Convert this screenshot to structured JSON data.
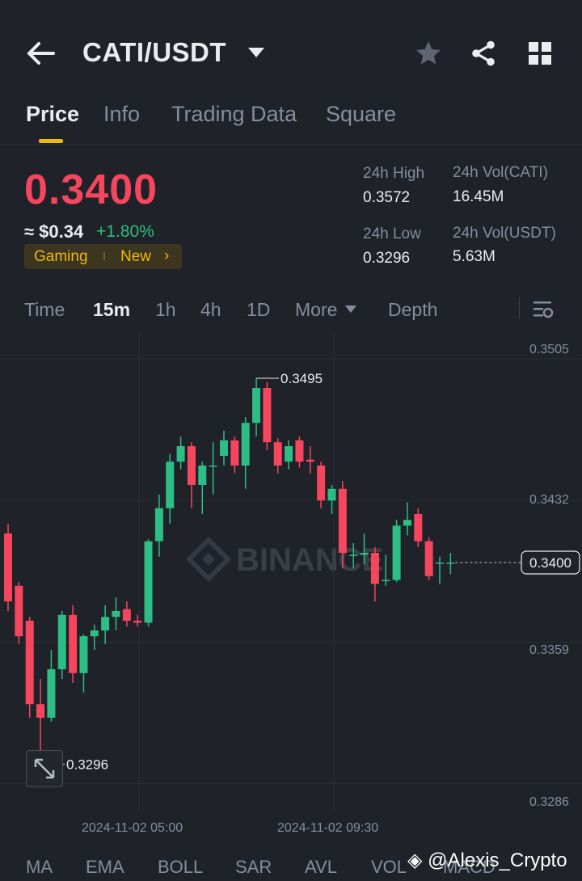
{
  "header": {
    "pair": "CATI/USDT",
    "icons": [
      "back-arrow-icon",
      "caret-down-icon",
      "star-icon",
      "share-icon",
      "grid-icon"
    ]
  },
  "tabs": [
    "Price",
    "Info",
    "Trading Data",
    "Square"
  ],
  "active_tab": "Price",
  "ticker": {
    "price": "0.3400",
    "approx": "≈ $0.34",
    "change": "+1.80%",
    "tag": "Gaming",
    "tag_new": "New",
    "tag_arrow": "›",
    "high_label": "24h High",
    "high": "0.3572",
    "low_label": "24h Low",
    "low": "0.3296",
    "vol_base_label": "24h Vol(CATI)",
    "vol_base": "16.45M",
    "vol_quote_label": "24h Vol(USDT)",
    "vol_quote": "5.63M"
  },
  "timeframes": {
    "time": "Time",
    "m15": "15m",
    "h1": "1h",
    "h4": "4h",
    "d1": "1D",
    "more": "More",
    "depth": "Depth"
  },
  "chart_axis": {
    "y1": "0.3505",
    "y2": "0.3432",
    "y3": "0.3359",
    "y4": "0.3286",
    "current": "0.3400",
    "max_label": "0.3495",
    "min_label": "0.3296",
    "t1": "2024-11-02 05:00",
    "t2": "2024-11-02 09:30",
    "watermark": "BINANCE"
  },
  "indicators": [
    "MA",
    "EMA",
    "BOLL",
    "SAR",
    "AVL",
    "VOL",
    "MACD"
  ],
  "overlay": {
    "watermark_text": "@Alexis_Crypto"
  },
  "colors": {
    "up": "#2ebd85",
    "down": "#f6465d",
    "accent": "#f0b90b",
    "background": "#1f2229"
  },
  "chart_data": {
    "type": "candlestick",
    "interval": "15m",
    "ylim": [
      0.3265,
      0.3515
    ],
    "y_ticks": [
      0.3505,
      0.3432,
      0.3359,
      0.3286
    ],
    "last_price": 0.34,
    "high_marker": 0.3495,
    "low_marker": 0.3296,
    "x_ticks": [
      "2024-11-02 05:00",
      "2024-11-02 09:30"
    ],
    "candles": [
      {
        "o": 0.3415,
        "h": 0.342,
        "c": 0.338,
        "l": 0.3375
      },
      {
        "o": 0.3388,
        "h": 0.339,
        "c": 0.3362,
        "l": 0.3358
      },
      {
        "o": 0.337,
        "h": 0.3372,
        "c": 0.3327,
        "l": 0.332
      },
      {
        "o": 0.3327,
        "h": 0.334,
        "c": 0.332,
        "l": 0.3296
      },
      {
        "o": 0.332,
        "h": 0.3355,
        "c": 0.3345,
        "l": 0.3318
      },
      {
        "o": 0.3345,
        "h": 0.3375,
        "c": 0.3373,
        "l": 0.334
      },
      {
        "o": 0.3373,
        "h": 0.3378,
        "c": 0.3343,
        "l": 0.3338
      },
      {
        "o": 0.3343,
        "h": 0.3363,
        "c": 0.3362,
        "l": 0.3333
      },
      {
        "o": 0.3362,
        "h": 0.3368,
        "c": 0.3365,
        "l": 0.3355
      },
      {
        "o": 0.3365,
        "h": 0.3378,
        "c": 0.3372,
        "l": 0.3358
      },
      {
        "o": 0.3372,
        "h": 0.3382,
        "c": 0.3375,
        "l": 0.3365
      },
      {
        "o": 0.3376,
        "h": 0.338,
        "c": 0.337,
        "l": 0.3367
      },
      {
        "o": 0.337,
        "h": 0.3373,
        "c": 0.3369,
        "l": 0.3367
      },
      {
        "o": 0.3369,
        "h": 0.3412,
        "c": 0.3411,
        "l": 0.3367
      },
      {
        "o": 0.3411,
        "h": 0.3435,
        "c": 0.3428,
        "l": 0.3403
      },
      {
        "o": 0.3428,
        "h": 0.3456,
        "c": 0.3452,
        "l": 0.342
      },
      {
        "o": 0.3452,
        "h": 0.3465,
        "c": 0.346,
        "l": 0.3448
      },
      {
        "o": 0.346,
        "h": 0.3462,
        "c": 0.344,
        "l": 0.3428
      },
      {
        "o": 0.344,
        "h": 0.3452,
        "c": 0.345,
        "l": 0.3425
      },
      {
        "o": 0.345,
        "h": 0.3462,
        "c": 0.345,
        "l": 0.3435
      },
      {
        "o": 0.3455,
        "h": 0.3468,
        "c": 0.3463,
        "l": 0.345
      },
      {
        "o": 0.3463,
        "h": 0.3465,
        "c": 0.345,
        "l": 0.3446
      },
      {
        "o": 0.345,
        "h": 0.3475,
        "c": 0.3472,
        "l": 0.3438
      },
      {
        "o": 0.3472,
        "h": 0.3495,
        "c": 0.349,
        "l": 0.3465
      },
      {
        "o": 0.349,
        "h": 0.3493,
        "c": 0.3462,
        "l": 0.3458
      },
      {
        "o": 0.3462,
        "h": 0.3464,
        "c": 0.345,
        "l": 0.3446
      },
      {
        "o": 0.3452,
        "h": 0.3463,
        "c": 0.346,
        "l": 0.3448
      },
      {
        "o": 0.3463,
        "h": 0.3465,
        "c": 0.3452,
        "l": 0.3449
      },
      {
        "o": 0.3453,
        "h": 0.346,
        "c": 0.3452,
        "l": 0.3446
      },
      {
        "o": 0.345,
        "h": 0.3452,
        "c": 0.3432,
        "l": 0.3428
      },
      {
        "o": 0.3432,
        "h": 0.344,
        "c": 0.3438,
        "l": 0.3425
      },
      {
        "o": 0.3438,
        "h": 0.3442,
        "c": 0.3405,
        "l": 0.3397
      },
      {
        "o": 0.3404,
        "h": 0.341,
        "c": 0.3404,
        "l": 0.3397
      },
      {
        "o": 0.3404,
        "h": 0.3415,
        "c": 0.3405,
        "l": 0.3399
      },
      {
        "o": 0.3405,
        "h": 0.3408,
        "c": 0.3389,
        "l": 0.338
      },
      {
        "o": 0.3391,
        "h": 0.3404,
        "c": 0.3391,
        "l": 0.3388
      },
      {
        "o": 0.3391,
        "h": 0.3422,
        "c": 0.3419,
        "l": 0.339
      },
      {
        "o": 0.3419,
        "h": 0.3431,
        "c": 0.3422,
        "l": 0.3414
      },
      {
        "o": 0.3425,
        "h": 0.3428,
        "c": 0.3411,
        "l": 0.3408
      },
      {
        "o": 0.3411,
        "h": 0.3413,
        "c": 0.3393,
        "l": 0.3391
      },
      {
        "o": 0.34,
        "h": 0.3403,
        "c": 0.34,
        "l": 0.3389
      },
      {
        "o": 0.34,
        "h": 0.3405,
        "c": 0.34,
        "l": 0.3394
      }
    ]
  }
}
